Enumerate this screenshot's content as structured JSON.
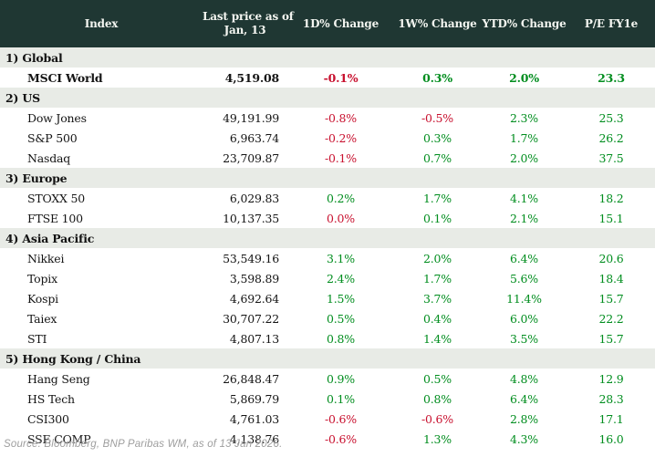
{
  "header": {
    "index": "Index",
    "price_line1": "Last price as of",
    "price_line2": "Jan, 13",
    "change_1d": "1D% Change",
    "change_1w": "1W% Change",
    "change_ytd": "YTD% Change",
    "pe": "P/E FY1e"
  },
  "chart_data": {
    "type": "table",
    "columns": [
      "Index",
      "Last price as of Jan, 13",
      "1D% Change",
      "1W% Change",
      "YTD% Change",
      "P/E FY1e"
    ],
    "sections": [
      {
        "label": "1) Global",
        "rows": [
          {
            "name": "MSCI World",
            "last_price": "4,519.08",
            "bold": true,
            "changes": [
              {
                "v": "-0.1%",
                "neg": true
              },
              {
                "v": "0.3%",
                "neg": false
              },
              {
                "v": "2.0%",
                "neg": false
              }
            ],
            "pe": "23.3"
          }
        ]
      },
      {
        "label": "2) US",
        "rows": [
          {
            "name": "Dow Jones",
            "last_price": "49,191.99",
            "changes": [
              {
                "v": "-0.8%",
                "neg": true
              },
              {
                "v": "-0.5%",
                "neg": true
              },
              {
                "v": "2.3%",
                "neg": false
              }
            ],
            "pe": "25.3"
          },
          {
            "name": "S&P 500",
            "last_price": "6,963.74",
            "changes": [
              {
                "v": "-0.2%",
                "neg": true
              },
              {
                "v": "0.3%",
                "neg": false
              },
              {
                "v": "1.7%",
                "neg": false
              }
            ],
            "pe": "26.2"
          },
          {
            "name": "Nasdaq",
            "last_price": "23,709.87",
            "changes": [
              {
                "v": "-0.1%",
                "neg": true
              },
              {
                "v": "0.7%",
                "neg": false
              },
              {
                "v": "2.0%",
                "neg": false
              }
            ],
            "pe": "37.5"
          }
        ]
      },
      {
        "label": "3) Europe",
        "rows": [
          {
            "name": "STOXX 50",
            "last_price": "6,029.83",
            "changes": [
              {
                "v": "0.2%",
                "neg": false
              },
              {
                "v": "1.7%",
                "neg": false
              },
              {
                "v": "4.1%",
                "neg": false
              }
            ],
            "pe": "18.2"
          },
          {
            "name": "FTSE 100",
            "last_price": "10,137.35",
            "changes": [
              {
                "v": "0.0%",
                "neg": true
              },
              {
                "v": "0.1%",
                "neg": false
              },
              {
                "v": "2.1%",
                "neg": false
              }
            ],
            "pe": "15.1"
          }
        ]
      },
      {
        "label": "4) Asia Pacific",
        "rows": [
          {
            "name": "Nikkei",
            "last_price": "53,549.16",
            "changes": [
              {
                "v": "3.1%",
                "neg": false
              },
              {
                "v": "2.0%",
                "neg": false
              },
              {
                "v": "6.4%",
                "neg": false
              }
            ],
            "pe": "20.6"
          },
          {
            "name": "Topix",
            "last_price": "3,598.89",
            "changes": [
              {
                "v": "2.4%",
                "neg": false
              },
              {
                "v": "1.7%",
                "neg": false
              },
              {
                "v": "5.6%",
                "neg": false
              }
            ],
            "pe": "18.4"
          },
          {
            "name": "Kospi",
            "last_price": "4,692.64",
            "changes": [
              {
                "v": "1.5%",
                "neg": false
              },
              {
                "v": "3.7%",
                "neg": false
              },
              {
                "v": "11.4%",
                "neg": false
              }
            ],
            "pe": "15.7"
          },
          {
            "name": "Taiex",
            "last_price": "30,707.22",
            "changes": [
              {
                "v": "0.5%",
                "neg": false
              },
              {
                "v": "0.4%",
                "neg": false
              },
              {
                "v": "6.0%",
                "neg": false
              }
            ],
            "pe": "22.2"
          },
          {
            "name": "STI",
            "last_price": "4,807.13",
            "changes": [
              {
                "v": "0.8%",
                "neg": false
              },
              {
                "v": "1.4%",
                "neg": false
              },
              {
                "v": "3.5%",
                "neg": false
              }
            ],
            "pe": "15.7"
          }
        ]
      },
      {
        "label": "5) Hong Kong / China",
        "rows": [
          {
            "name": "Hang Seng",
            "last_price": "26,848.47",
            "changes": [
              {
                "v": "0.9%",
                "neg": false
              },
              {
                "v": "0.5%",
                "neg": false
              },
              {
                "v": "4.8%",
                "neg": false
              }
            ],
            "pe": "12.9"
          },
          {
            "name": "HS Tech",
            "last_price": "5,869.79",
            "changes": [
              {
                "v": "0.1%",
                "neg": false
              },
              {
                "v": "0.8%",
                "neg": false
              },
              {
                "v": "6.4%",
                "neg": false
              }
            ],
            "pe": "28.3"
          },
          {
            "name": "CSI300",
            "last_price": "4,761.03",
            "changes": [
              {
                "v": "-0.6%",
                "neg": true
              },
              {
                "v": "-0.6%",
                "neg": true
              },
              {
                "v": "2.8%",
                "neg": false
              }
            ],
            "pe": "17.1"
          },
          {
            "name": "SSE COMP",
            "last_price": "4,138.76",
            "changes": [
              {
                "v": "-0.6%",
                "neg": true
              },
              {
                "v": "1.3%",
                "neg": false
              },
              {
                "v": "4.3%",
                "neg": false
              }
            ],
            "pe": "16.0"
          }
        ]
      }
    ]
  },
  "footer": {
    "source": "Source: Bloomberg, BNP Paribas WM, as of 13 Jan 2026."
  },
  "colors": {
    "header_bg": "#1f3733",
    "section_bg": "#e8ebe6",
    "positive": "#008d1e",
    "negative": "#c8102e",
    "footer_text": "#9e9e9e"
  }
}
